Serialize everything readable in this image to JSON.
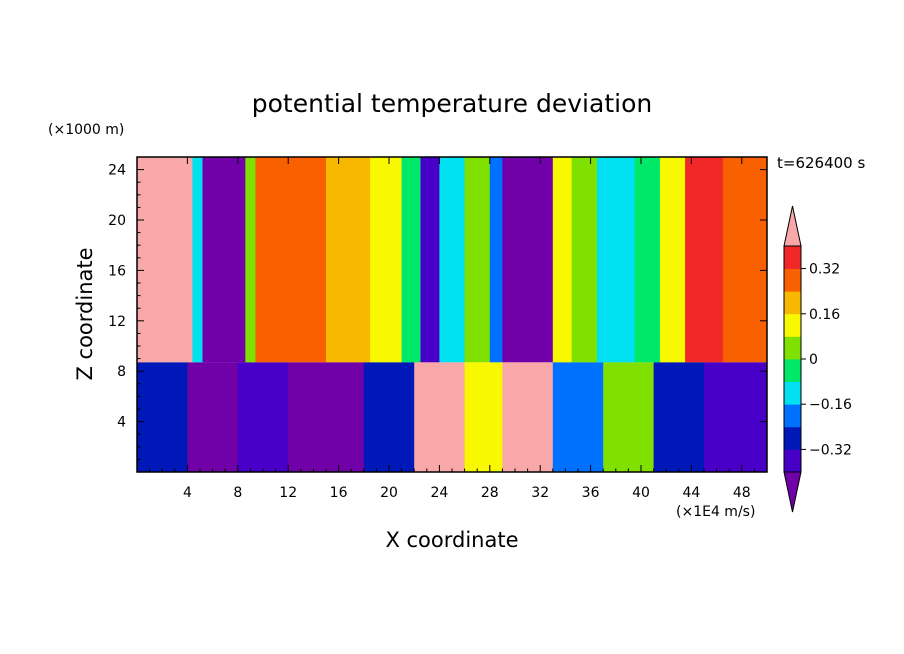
{
  "chart_data": {
    "type": "heatmap",
    "title": "potential temperature deviation",
    "xlabel": "X coordinate",
    "ylabel": "Z coordinate",
    "x_unit": "(×1E4 m/s)",
    "y_unit": "(×1000 m)",
    "time_label": "t=626400 s",
    "xlim": [
      0,
      50
    ],
    "ylim": [
      0,
      25
    ],
    "x_ticks": [
      "4",
      "8",
      "12",
      "16",
      "20",
      "24",
      "28",
      "32",
      "36",
      "40",
      "44",
      "48"
    ],
    "x_tick_values": [
      4,
      8,
      12,
      16,
      20,
      24,
      28,
      32,
      36,
      40,
      44,
      48
    ],
    "y_ticks": [
      "4",
      "8",
      "12",
      "16",
      "20",
      "24"
    ],
    "y_tick_values": [
      4,
      8,
      12,
      16,
      20,
      24
    ],
    "colorbar": {
      "levels": [
        -0.4,
        -0.32,
        -0.24,
        -0.16,
        -0.08,
        0,
        0.08,
        0.16,
        0.24,
        0.32,
        0.4
      ],
      "labels": [
        "0.32",
        "0.16",
        "0",
        "−0.16",
        "−0.32"
      ],
      "label_values": [
        0.32,
        0.16,
        0,
        -0.16,
        -0.32
      ],
      "colors": [
        "#7000a8",
        "#4800c8",
        "#0018b8",
        "#0070ff",
        "#00e0f0",
        "#00e868",
        "#80e000",
        "#f8f800",
        "#f8b800",
        "#f86000",
        "#f02828",
        "#f8a8a8"
      ],
      "extend": "both"
    },
    "upper_layer_columns": [
      {
        "x0": 0,
        "x1": 4.4,
        "value": 0.42
      },
      {
        "x0": 4.4,
        "x1": 5.2,
        "value": -0.12
      },
      {
        "x0": 5.2,
        "x1": 8.6,
        "value": -0.44
      },
      {
        "x0": 8.6,
        "x1": 9.4,
        "value": 0.05
      },
      {
        "x0": 9.4,
        "x1": 15.0,
        "value": 0.3
      },
      {
        "x0": 15.0,
        "x1": 18.5,
        "value": 0.22
      },
      {
        "x0": 18.5,
        "x1": 21.0,
        "value": 0.12
      },
      {
        "x0": 21.0,
        "x1": 22.5,
        "value": -0.05
      },
      {
        "x0": 22.5,
        "x1": 24.0,
        "value": -0.36
      },
      {
        "x0": 24.0,
        "x1": 26.0,
        "value": -0.14
      },
      {
        "x0": 26.0,
        "x1": 28.0,
        "value": 0.06
      },
      {
        "x0": 28.0,
        "x1": 29.0,
        "value": -0.2
      },
      {
        "x0": 29.0,
        "x1": 33.0,
        "value": -0.44
      },
      {
        "x0": 33.0,
        "x1": 34.5,
        "value": 0.1
      },
      {
        "x0": 34.5,
        "x1": 36.5,
        "value": 0.02
      },
      {
        "x0": 36.5,
        "x1": 39.5,
        "value": -0.12
      },
      {
        "x0": 39.5,
        "x1": 41.5,
        "value": -0.02
      },
      {
        "x0": 41.5,
        "x1": 43.5,
        "value": 0.15
      },
      {
        "x0": 43.5,
        "x1": 46.5,
        "value": 0.36
      },
      {
        "x0": 46.5,
        "x1": 48.5,
        "value": 0.3
      },
      {
        "x0": 48.5,
        "x1": 50,
        "value": 0.25
      }
    ],
    "lower_layer_columns": [
      {
        "x0": 0,
        "x1": 4.0,
        "value": -0.26
      },
      {
        "x0": 4.0,
        "x1": 8.0,
        "value": -0.42
      },
      {
        "x0": 8.0,
        "x1": 12.0,
        "value": -0.38
      },
      {
        "x0": 12.0,
        "x1": 18.0,
        "value": -0.42
      },
      {
        "x0": 18.0,
        "x1": 22.0,
        "value": -0.3
      },
      {
        "x0": 22.0,
        "x1": 26.0,
        "value": 0.42
      },
      {
        "x0": 26.0,
        "x1": 29.0,
        "value": 0.1
      },
      {
        "x0": 29.0,
        "x1": 33.0,
        "value": 0.42
      },
      {
        "x0": 33.0,
        "x1": 37.0,
        "value": -0.2
      },
      {
        "x0": 37.0,
        "x1": 41.0,
        "value": 0.05
      },
      {
        "x0": 41.0,
        "x1": 45.0,
        "value": -0.3
      },
      {
        "x0": 45.0,
        "x1": 50,
        "value": -0.4
      }
    ],
    "inversion_height": 8.7
  }
}
